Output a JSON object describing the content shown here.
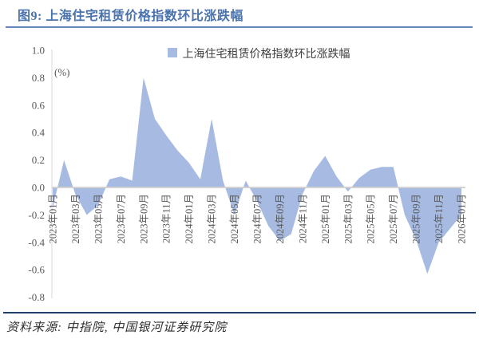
{
  "header": {
    "title": "图9: 上海住宅租赁价格指数环比涨跌幅"
  },
  "footer": {
    "source": "资料来源: 中指院, 中国银河证券研究院"
  },
  "chart_data": {
    "type": "area",
    "legend": [
      "上海住宅租赁价格指数环比涨跌幅"
    ],
    "unit_label": "(%)",
    "ylabel": "",
    "xlabel": "",
    "ylim": [
      -0.8,
      1.0
    ],
    "y_ticks": [
      1.0,
      0.8,
      0.6,
      0.4,
      0.2,
      0.0,
      -0.2,
      -0.4,
      -0.6,
      -0.8
    ],
    "grid": "zero-line-only",
    "legend_position": "top-center",
    "x": [
      "2023年01月",
      "2023年02月",
      "2023年03月",
      "2023年04月",
      "2023年05月",
      "2023年06月",
      "2023年07月",
      "2023年08月",
      "2023年09月",
      "2023年10月",
      "2023年11月",
      "2023年12月",
      "2024年01月",
      "2024年02月",
      "2024年03月",
      "2024年04月",
      "2024年05月",
      "2024年06月",
      "2024年07月",
      "2024年08月",
      "2024年09月",
      "2024年10月",
      "2024年11月",
      "2024年12月",
      "2025年01月",
      "2025年02月",
      "2025年03月",
      "2025年04月",
      "2025年05月",
      "2025年06月",
      "2025年07月",
      "2025年08月",
      "2025年09月",
      "2025年10月",
      "2025年11月",
      "2025年12月",
      "2026年01月"
    ],
    "x_label_every": 2,
    "values": [
      -0.15,
      0.2,
      -0.05,
      -0.2,
      -0.13,
      0.06,
      0.08,
      0.05,
      0.8,
      0.5,
      0.38,
      0.27,
      0.18,
      0.06,
      0.5,
      0.05,
      -0.2,
      0.05,
      -0.1,
      -0.28,
      -0.39,
      -0.34,
      -0.05,
      0.12,
      0.23,
      0.08,
      -0.03,
      0.07,
      0.13,
      0.15,
      0.15,
      -0.2,
      -0.38,
      -0.63,
      -0.4,
      -0.3,
      -0.2
    ],
    "colors": {
      "area_fill": "#a7bbe2",
      "title_blue": "#4a72ad",
      "title_rule": "#6286ba",
      "source_rule": "#1e3f70",
      "axis_gray": "#d9d9d9",
      "tick_text": "#595959"
    }
  }
}
